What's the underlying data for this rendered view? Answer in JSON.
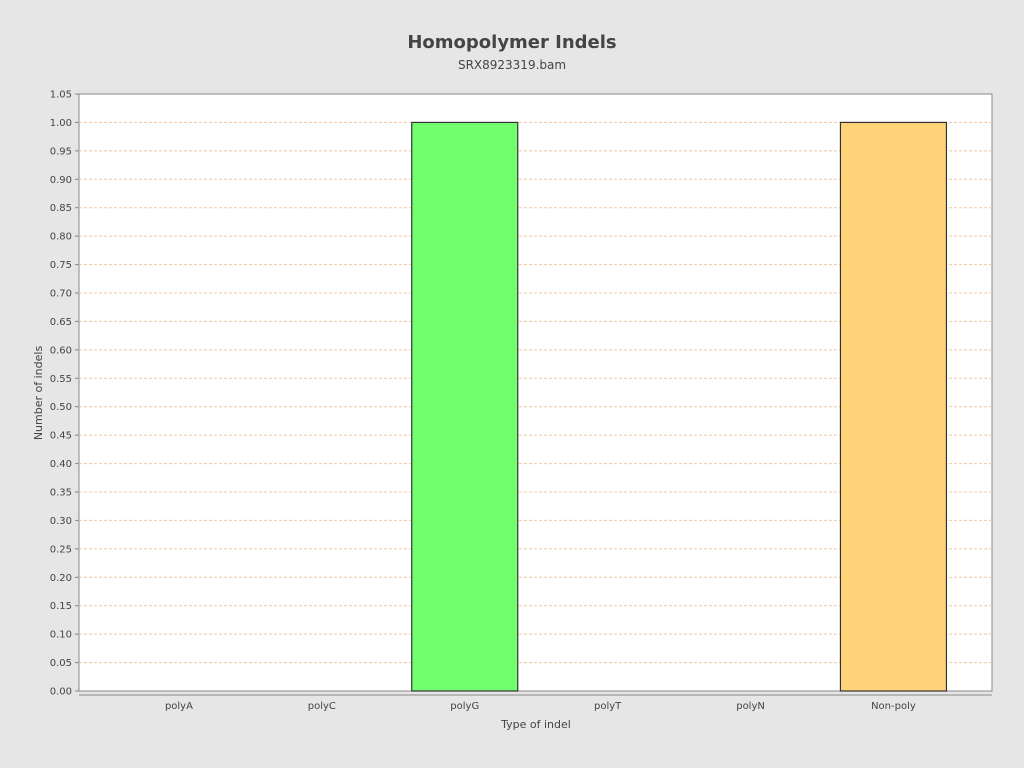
{
  "chart_data": {
    "type": "bar",
    "title": "Homopolymer Indels",
    "subtitle": "SRX8923319.bam",
    "xlabel": "Type of indel",
    "ylabel": "Number of indels",
    "categories": [
      "polyA",
      "polyC",
      "polyG",
      "polyT",
      "polyN",
      "Non-poly"
    ],
    "values": [
      0,
      0,
      1,
      0,
      0,
      1
    ],
    "colors": [
      "#7f7fff",
      "#7f7fff",
      "#72ff6e",
      "#7f7fff",
      "#7f7fff",
      "#ffd479"
    ],
    "ylim": [
      0,
      1.05
    ],
    "yticks": [
      "0.00",
      "0.05",
      "0.10",
      "0.15",
      "0.20",
      "0.25",
      "0.30",
      "0.35",
      "0.40",
      "0.45",
      "0.50",
      "0.55",
      "0.60",
      "0.65",
      "0.70",
      "0.75",
      "0.80",
      "0.85",
      "0.90",
      "0.95",
      "1.00",
      "1.05"
    ],
    "grid": true,
    "grid_color": "#f2c8a0",
    "plot_background": "#ffffff",
    "bar_border_color": "#333333"
  }
}
